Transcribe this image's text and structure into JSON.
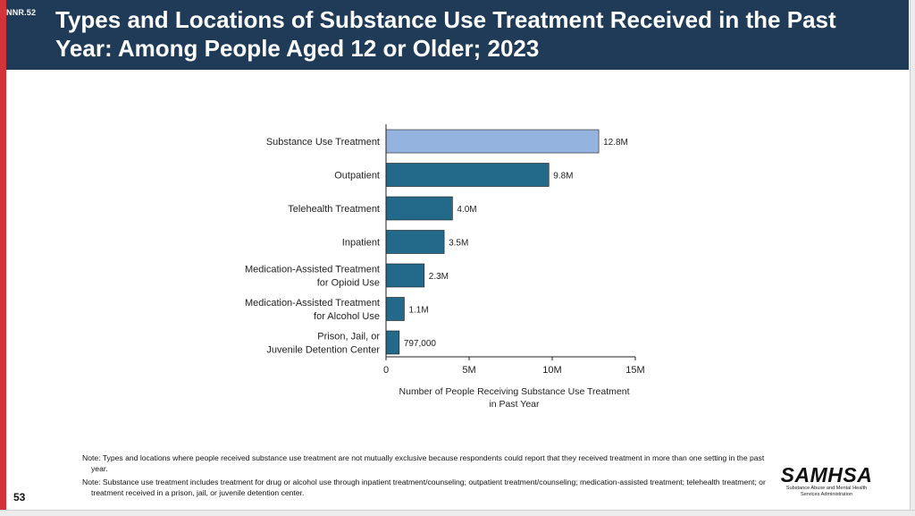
{
  "header": {
    "slide_code": "NNR.52",
    "title": "Types and Locations of Substance Use Treatment Received in the Past Year: Among People Aged 12 or Older; 2023"
  },
  "chart_data": {
    "type": "bar",
    "orientation": "horizontal",
    "title": "",
    "xlabel": "Number of People Receiving Substance Use Treatment in Past Year",
    "xlim": [
      0,
      15000000
    ],
    "xticks": [
      {
        "value": 0,
        "label": "0"
      },
      {
        "value": 5000000,
        "label": "5M"
      },
      {
        "value": 10000000,
        "label": "10M"
      },
      {
        "value": 15000000,
        "label": "15M"
      }
    ],
    "grid": false,
    "bars": [
      {
        "category": [
          "Substance Use Treatment"
        ],
        "value": 12800000,
        "label": "12.8M",
        "color": "#94b4df"
      },
      {
        "category": [
          "Outpatient"
        ],
        "value": 9800000,
        "label": "9.8M",
        "color": "#236a8a"
      },
      {
        "category": [
          "Telehealth Treatment"
        ],
        "value": 4000000,
        "label": "4.0M",
        "color": "#236a8a"
      },
      {
        "category": [
          "Inpatient"
        ],
        "value": 3500000,
        "label": "3.5M",
        "color": "#236a8a"
      },
      {
        "category": [
          "Medication-Assisted Treatment",
          "for Opioid Use"
        ],
        "value": 2300000,
        "label": "2.3M",
        "color": "#236a8a"
      },
      {
        "category": [
          "Medication-Assisted Treatment",
          "for Alcohol Use"
        ],
        "value": 1100000,
        "label": "1.1M",
        "color": "#236a8a"
      },
      {
        "category": [
          "Prison, Jail, or",
          "Juvenile Detention Center"
        ],
        "value": 797000,
        "label": "797,000",
        "color": "#236a8a"
      }
    ]
  },
  "notes": {
    "note1": "Note: Types and locations where people received substance use treatment are not mutually exclusive because respondents could report that they received treatment in more than one setting in the past year.",
    "note2": "Note: Substance use treatment includes treatment for drug or alcohol use through inpatient treatment/counseling; outpatient treatment/counseling; medication-assisted treatment; telehealth treatment; or treatment received in a prison, jail, or juvenile detention center."
  },
  "footer": {
    "page_number": "53",
    "logo_text": "SAMHSA",
    "logo_subtitle": "Substance Abuse and Mental Health Services Administration"
  },
  "colors": {
    "header_bg": "#1f3b57",
    "accent_red": "#d2343a",
    "highlight_bar": "#94b4df",
    "bar": "#236a8a"
  }
}
